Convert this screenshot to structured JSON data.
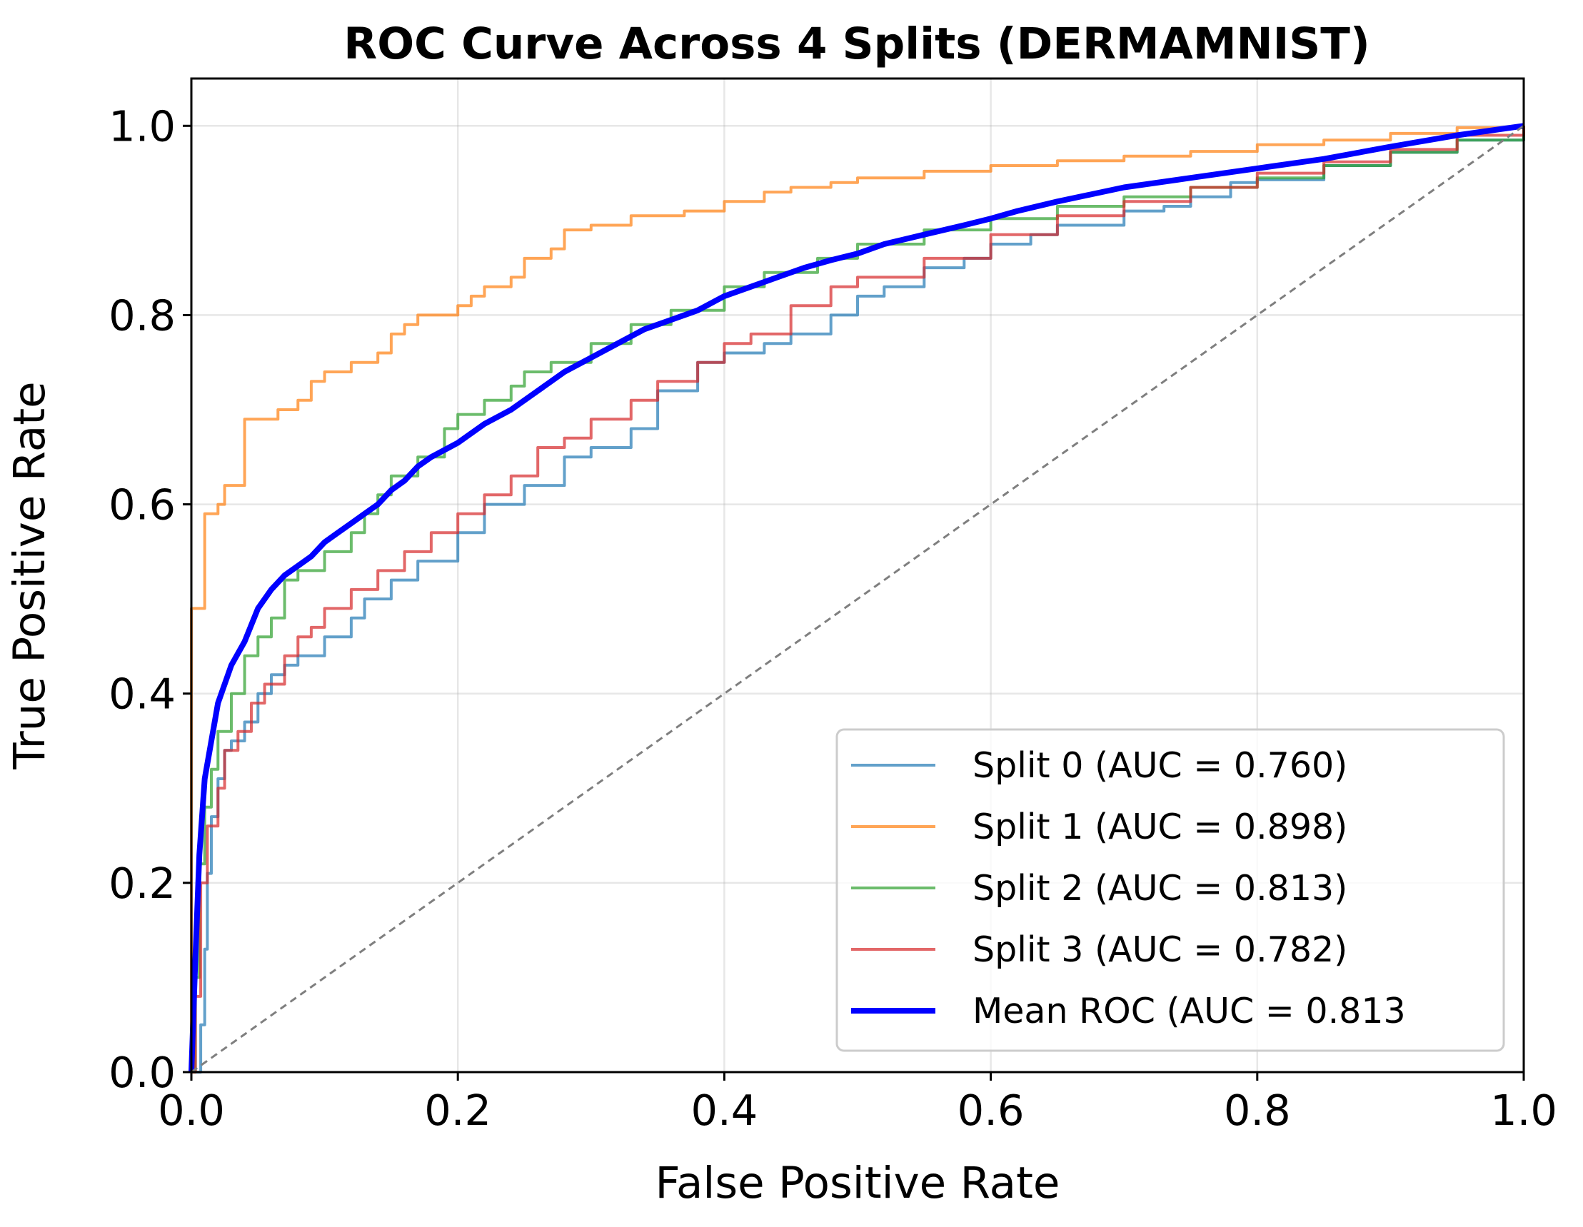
{
  "chart_data": {
    "type": "line",
    "title": "ROC Curve Across 4 Splits (DERMAMNIST)",
    "xlabel": "False Positive Rate",
    "ylabel": "True Positive Rate",
    "xlim": [
      0.0,
      1.0
    ],
    "ylim": [
      0.0,
      1.05
    ],
    "x_ticks": [
      "0.0",
      "0.2",
      "0.4",
      "0.6",
      "0.8",
      "1.0"
    ],
    "y_ticks": [
      "0.0",
      "0.2",
      "0.4",
      "0.6",
      "0.8",
      "1.0"
    ],
    "grid": true,
    "legend_position": "lower right",
    "series": [
      {
        "name": "Split 0 (AUC = 0.760)",
        "color": "#1f77b4",
        "style": "step",
        "points": [
          [
            0,
            0
          ],
          [
            0.005,
            0.0
          ],
          [
            0.007,
            0.05
          ],
          [
            0.01,
            0.13
          ],
          [
            0.012,
            0.21
          ],
          [
            0.015,
            0.27
          ],
          [
            0.02,
            0.31
          ],
          [
            0.025,
            0.34
          ],
          [
            0.03,
            0.35
          ],
          [
            0.04,
            0.37
          ],
          [
            0.05,
            0.4
          ],
          [
            0.06,
            0.42
          ],
          [
            0.07,
            0.43
          ],
          [
            0.08,
            0.44
          ],
          [
            0.1,
            0.46
          ],
          [
            0.12,
            0.48
          ],
          [
            0.13,
            0.5
          ],
          [
            0.15,
            0.52
          ],
          [
            0.17,
            0.54
          ],
          [
            0.2,
            0.57
          ],
          [
            0.22,
            0.6
          ],
          [
            0.25,
            0.62
          ],
          [
            0.28,
            0.65
          ],
          [
            0.3,
            0.66
          ],
          [
            0.33,
            0.68
          ],
          [
            0.35,
            0.72
          ],
          [
            0.38,
            0.75
          ],
          [
            0.4,
            0.76
          ],
          [
            0.43,
            0.77
          ],
          [
            0.45,
            0.78
          ],
          [
            0.48,
            0.8
          ],
          [
            0.5,
            0.82
          ],
          [
            0.52,
            0.83
          ],
          [
            0.55,
            0.85
          ],
          [
            0.58,
            0.86
          ],
          [
            0.6,
            0.875
          ],
          [
            0.63,
            0.885
          ],
          [
            0.65,
            0.895
          ],
          [
            0.7,
            0.91
          ],
          [
            0.73,
            0.915
          ],
          [
            0.75,
            0.925
          ],
          [
            0.78,
            0.94
          ],
          [
            0.8,
            0.943
          ],
          [
            0.85,
            0.958
          ],
          [
            0.9,
            0.972
          ],
          [
            0.95,
            0.985
          ],
          [
            1.0,
            1.0
          ]
        ]
      },
      {
        "name": "Split 1 (AUC = 0.898)",
        "color": "#ff7f0e",
        "style": "step",
        "points": [
          [
            0,
            0
          ],
          [
            0,
            0.49
          ],
          [
            0.01,
            0.49
          ],
          [
            0.01,
            0.59
          ],
          [
            0.02,
            0.6
          ],
          [
            0.025,
            0.62
          ],
          [
            0.03,
            0.62
          ],
          [
            0.04,
            0.62
          ],
          [
            0.04,
            0.69
          ],
          [
            0.06,
            0.69
          ],
          [
            0.065,
            0.7
          ],
          [
            0.08,
            0.71
          ],
          [
            0.09,
            0.73
          ],
          [
            0.1,
            0.74
          ],
          [
            0.12,
            0.75
          ],
          [
            0.14,
            0.76
          ],
          [
            0.15,
            0.78
          ],
          [
            0.16,
            0.79
          ],
          [
            0.17,
            0.8
          ],
          [
            0.2,
            0.81
          ],
          [
            0.21,
            0.82
          ],
          [
            0.22,
            0.83
          ],
          [
            0.24,
            0.84
          ],
          [
            0.25,
            0.86
          ],
          [
            0.27,
            0.87
          ],
          [
            0.28,
            0.89
          ],
          [
            0.3,
            0.895
          ],
          [
            0.33,
            0.905
          ],
          [
            0.37,
            0.91
          ],
          [
            0.4,
            0.92
          ],
          [
            0.43,
            0.93
          ],
          [
            0.45,
            0.935
          ],
          [
            0.48,
            0.94
          ],
          [
            0.5,
            0.945
          ],
          [
            0.55,
            0.952
          ],
          [
            0.6,
            0.958
          ],
          [
            0.65,
            0.963
          ],
          [
            0.7,
            0.968
          ],
          [
            0.75,
            0.973
          ],
          [
            0.8,
            0.98
          ],
          [
            0.85,
            0.985
          ],
          [
            0.9,
            0.992
          ],
          [
            0.95,
            0.998
          ],
          [
            1.0,
            1.0
          ]
        ]
      },
      {
        "name": "Split 2 (AUC = 0.813)",
        "color": "#2ca02c",
        "style": "step",
        "points": [
          [
            0,
            0
          ],
          [
            0.003,
            0.1
          ],
          [
            0.006,
            0.22
          ],
          [
            0.01,
            0.28
          ],
          [
            0.015,
            0.32
          ],
          [
            0.02,
            0.36
          ],
          [
            0.03,
            0.4
          ],
          [
            0.04,
            0.44
          ],
          [
            0.05,
            0.46
          ],
          [
            0.06,
            0.48
          ],
          [
            0.07,
            0.52
          ],
          [
            0.08,
            0.53
          ],
          [
            0.1,
            0.55
          ],
          [
            0.12,
            0.57
          ],
          [
            0.13,
            0.59
          ],
          [
            0.14,
            0.61
          ],
          [
            0.15,
            0.63
          ],
          [
            0.17,
            0.65
          ],
          [
            0.19,
            0.68
          ],
          [
            0.2,
            0.695
          ],
          [
            0.22,
            0.71
          ],
          [
            0.24,
            0.725
          ],
          [
            0.25,
            0.74
          ],
          [
            0.27,
            0.75
          ],
          [
            0.3,
            0.77
          ],
          [
            0.33,
            0.79
          ],
          [
            0.36,
            0.805
          ],
          [
            0.4,
            0.83
          ],
          [
            0.43,
            0.845
          ],
          [
            0.47,
            0.86
          ],
          [
            0.5,
            0.875
          ],
          [
            0.55,
            0.89
          ],
          [
            0.6,
            0.902
          ],
          [
            0.65,
            0.915
          ],
          [
            0.7,
            0.925
          ],
          [
            0.75,
            0.935
          ],
          [
            0.8,
            0.945
          ],
          [
            0.85,
            0.958
          ],
          [
            0.9,
            0.972
          ],
          [
            0.95,
            0.985
          ],
          [
            1.0,
            1.0
          ]
        ]
      },
      {
        "name": "Split 3 (AUC = 0.782)",
        "color": "#d62728",
        "style": "step",
        "points": [
          [
            0,
            0
          ],
          [
            0.003,
            0.08
          ],
          [
            0.007,
            0.2
          ],
          [
            0.012,
            0.26
          ],
          [
            0.02,
            0.3
          ],
          [
            0.025,
            0.34
          ],
          [
            0.035,
            0.36
          ],
          [
            0.045,
            0.39
          ],
          [
            0.055,
            0.41
          ],
          [
            0.07,
            0.44
          ],
          [
            0.08,
            0.46
          ],
          [
            0.09,
            0.47
          ],
          [
            0.1,
            0.49
          ],
          [
            0.12,
            0.51
          ],
          [
            0.14,
            0.53
          ],
          [
            0.16,
            0.55
          ],
          [
            0.18,
            0.57
          ],
          [
            0.2,
            0.59
          ],
          [
            0.22,
            0.61
          ],
          [
            0.24,
            0.63
          ],
          [
            0.26,
            0.66
          ],
          [
            0.28,
            0.67
          ],
          [
            0.3,
            0.69
          ],
          [
            0.33,
            0.71
          ],
          [
            0.35,
            0.73
          ],
          [
            0.38,
            0.75
          ],
          [
            0.4,
            0.77
          ],
          [
            0.42,
            0.78
          ],
          [
            0.45,
            0.81
          ],
          [
            0.48,
            0.83
          ],
          [
            0.5,
            0.84
          ],
          [
            0.55,
            0.86
          ],
          [
            0.6,
            0.885
          ],
          [
            0.65,
            0.905
          ],
          [
            0.7,
            0.92
          ],
          [
            0.75,
            0.935
          ],
          [
            0.8,
            0.95
          ],
          [
            0.85,
            0.962
          ],
          [
            0.9,
            0.975
          ],
          [
            0.95,
            0.99
          ],
          [
            1.0,
            1.0
          ]
        ]
      },
      {
        "name": "Mean ROC (AUC = 0.813",
        "color": "#0000ff",
        "style": "line",
        "points": [
          [
            0,
            0
          ],
          [
            0.003,
            0.12
          ],
          [
            0.006,
            0.23
          ],
          [
            0.01,
            0.31
          ],
          [
            0.015,
            0.35
          ],
          [
            0.02,
            0.39
          ],
          [
            0.03,
            0.43
          ],
          [
            0.04,
            0.455
          ],
          [
            0.05,
            0.49
          ],
          [
            0.06,
            0.51
          ],
          [
            0.07,
            0.525
          ],
          [
            0.08,
            0.535
          ],
          [
            0.09,
            0.545
          ],
          [
            0.1,
            0.56
          ],
          [
            0.11,
            0.57
          ],
          [
            0.12,
            0.58
          ],
          [
            0.13,
            0.59
          ],
          [
            0.14,
            0.6
          ],
          [
            0.15,
            0.615
          ],
          [
            0.16,
            0.625
          ],
          [
            0.17,
            0.64
          ],
          [
            0.18,
            0.65
          ],
          [
            0.2,
            0.665
          ],
          [
            0.22,
            0.685
          ],
          [
            0.24,
            0.7
          ],
          [
            0.26,
            0.72
          ],
          [
            0.28,
            0.74
          ],
          [
            0.3,
            0.755
          ],
          [
            0.32,
            0.77
          ],
          [
            0.34,
            0.785
          ],
          [
            0.36,
            0.795
          ],
          [
            0.38,
            0.805
          ],
          [
            0.4,
            0.82
          ],
          [
            0.42,
            0.83
          ],
          [
            0.44,
            0.84
          ],
          [
            0.46,
            0.85
          ],
          [
            0.48,
            0.858
          ],
          [
            0.5,
            0.865
          ],
          [
            0.52,
            0.875
          ],
          [
            0.55,
            0.885
          ],
          [
            0.58,
            0.895
          ],
          [
            0.6,
            0.902
          ],
          [
            0.62,
            0.91
          ],
          [
            0.65,
            0.92
          ],
          [
            0.7,
            0.935
          ],
          [
            0.75,
            0.945
          ],
          [
            0.8,
            0.955
          ],
          [
            0.85,
            0.965
          ],
          [
            0.9,
            0.978
          ],
          [
            0.95,
            0.99
          ],
          [
            1.0,
            1.0
          ]
        ]
      },
      {
        "name": "",
        "color": "#7f7f7f",
        "style": "dashed",
        "points": [
          [
            0,
            0
          ],
          [
            1,
            1
          ]
        ]
      }
    ]
  }
}
